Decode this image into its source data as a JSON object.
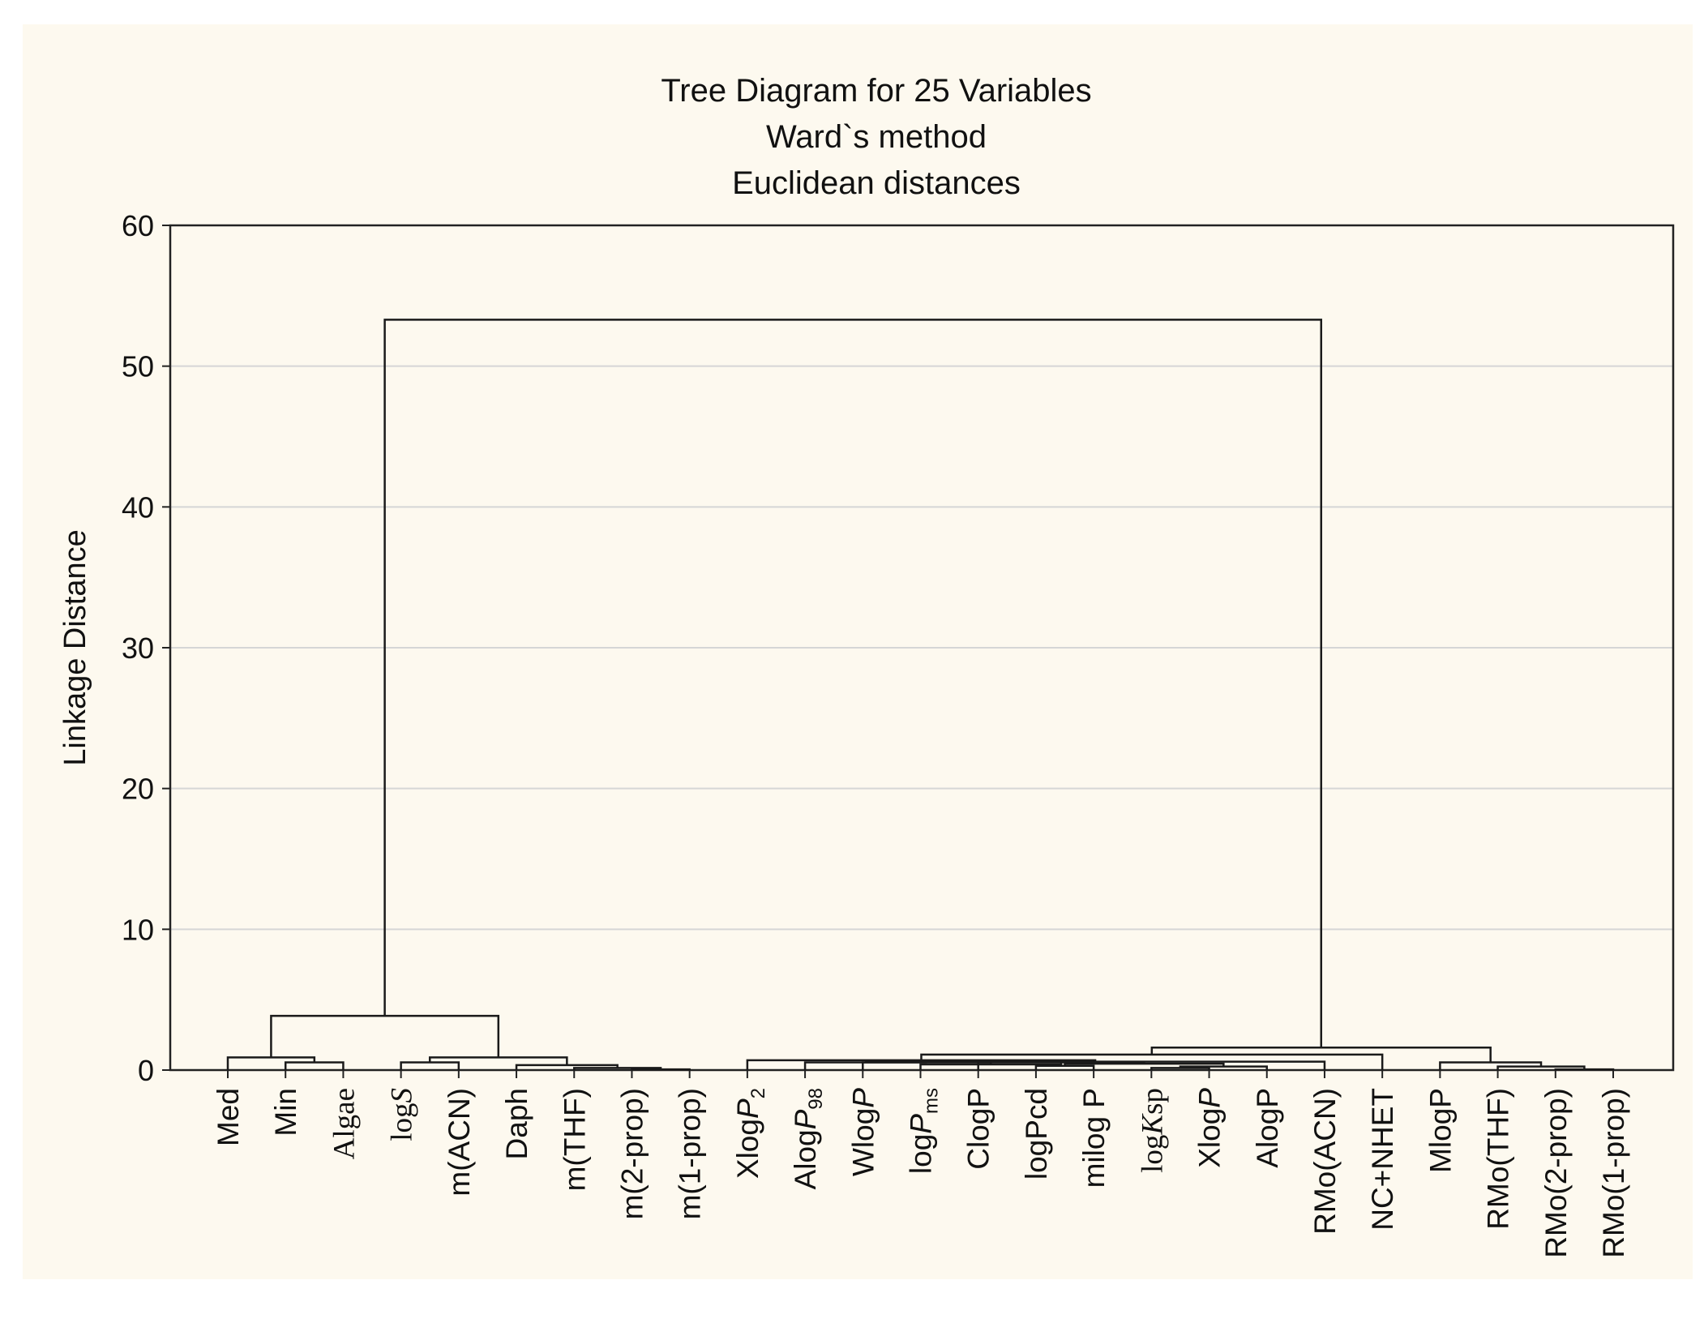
{
  "chart_data": {
    "type": "dendrogram",
    "title": [
      "Tree Diagram for 25 Variables",
      "Ward`s method",
      "Euclidean distances"
    ],
    "ylabel": "Linkage Distance",
    "xlabel": "",
    "ylim": [
      0,
      60
    ],
    "yticks": [
      0,
      10,
      20,
      30,
      40,
      50,
      60
    ],
    "grid": true,
    "leaves": [
      {
        "parts": [
          {
            "t": "Med"
          }
        ]
      },
      {
        "parts": [
          {
            "t": "Min"
          }
        ]
      },
      {
        "parts": [
          {
            "t": "Algae",
            "serif": true
          }
        ]
      },
      {
        "parts": [
          {
            "t": "log",
            "serif": true
          },
          {
            "t": "S",
            "serif": true,
            "italic": true
          }
        ]
      },
      {
        "parts": [
          {
            "t": "m(ACN)"
          }
        ]
      },
      {
        "parts": [
          {
            "t": "Daph"
          }
        ]
      },
      {
        "parts": [
          {
            "t": "m(THF)"
          }
        ]
      },
      {
        "parts": [
          {
            "t": "m(2-prop)"
          }
        ]
      },
      {
        "parts": [
          {
            "t": "m(1-prop)"
          }
        ]
      },
      {
        "parts": [
          {
            "t": "Xlog"
          },
          {
            "t": "P",
            "italic": true
          },
          {
            "t": "2",
            "sub": true
          }
        ]
      },
      {
        "parts": [
          {
            "t": "Alog"
          },
          {
            "t": "P",
            "italic": true
          },
          {
            "t": "98",
            "sub": true
          }
        ]
      },
      {
        "parts": [
          {
            "t": "Wlog"
          },
          {
            "t": "P",
            "italic": true
          }
        ]
      },
      {
        "parts": [
          {
            "t": "log"
          },
          {
            "t": "P",
            "italic": true
          },
          {
            "t": "ms",
            "sub": true
          }
        ]
      },
      {
        "parts": [
          {
            "t": "ClogP"
          }
        ]
      },
      {
        "parts": [
          {
            "t": "logPcd"
          }
        ]
      },
      {
        "parts": [
          {
            "t": "milog P"
          }
        ]
      },
      {
        "parts": [
          {
            "t": "log",
            "serif": true
          },
          {
            "t": "K",
            "serif": true,
            "italic": true
          },
          {
            "t": "sp",
            "serif": true
          }
        ]
      },
      {
        "parts": [
          {
            "t": "Xlog"
          },
          {
            "t": "P",
            "italic": true
          }
        ]
      },
      {
        "parts": [
          {
            "t": "AlogP"
          }
        ]
      },
      {
        "parts": [
          {
            "t": "RMo(ACN)"
          }
        ]
      },
      {
        "parts": [
          {
            "t": "NC+NHET"
          }
        ]
      },
      {
        "parts": [
          {
            "t": "MlogP"
          }
        ]
      },
      {
        "parts": [
          {
            "t": "RMo(THF)"
          }
        ]
      },
      {
        "parts": [
          {
            "t": "RMo(2-prop)"
          }
        ]
      },
      {
        "parts": [
          {
            "t": "RMo(1-prop)"
          }
        ]
      }
    ],
    "merges": [
      {
        "a": "L7",
        "b": "L8",
        "h": 0.05
      },
      {
        "a": "L6",
        "b": "M0",
        "h": 0.15
      },
      {
        "a": "L5",
        "b": "M1",
        "h": 0.35
      },
      {
        "a": "L3",
        "b": "L4",
        "h": 0.55
      },
      {
        "a": "M3",
        "b": "M2",
        "h": 0.9
      },
      {
        "a": "L1",
        "b": "L2",
        "h": 0.55
      },
      {
        "a": "L0",
        "b": "M5",
        "h": 0.9
      },
      {
        "a": "M6",
        "b": "M4",
        "h": 3.85
      },
      {
        "a": "L23",
        "b": "L24",
        "h": 0.05
      },
      {
        "a": "L22",
        "b": "M8",
        "h": 0.25
      },
      {
        "a": "L21",
        "b": "M9",
        "h": 0.55
      },
      {
        "a": "L16",
        "b": "L17",
        "h": 0.15
      },
      {
        "a": "M11",
        "b": "L18",
        "h": 0.25
      },
      {
        "a": "L14",
        "b": "L15",
        "h": 0.3
      },
      {
        "a": "M13",
        "b": "M12",
        "h": 0.45
      },
      {
        "a": "L13",
        "b": "M14",
        "h": 0.55
      },
      {
        "a": "L12",
        "b": "M15",
        "h": 0.4
      },
      {
        "a": "L11",
        "b": "M16",
        "h": 0.55
      },
      {
        "a": "L10",
        "b": "M17",
        "h": 0.55
      },
      {
        "a": "M18",
        "b": "L19",
        "h": 0.6
      },
      {
        "a": "L9",
        "b": "M19",
        "h": 0.7
      },
      {
        "a": "M20",
        "b": "L20",
        "h": 1.1
      },
      {
        "a": "M21",
        "b": "M10",
        "h": 1.6
      },
      {
        "a": "M7",
        "b": "M22",
        "h": 53.3
      }
    ]
  }
}
